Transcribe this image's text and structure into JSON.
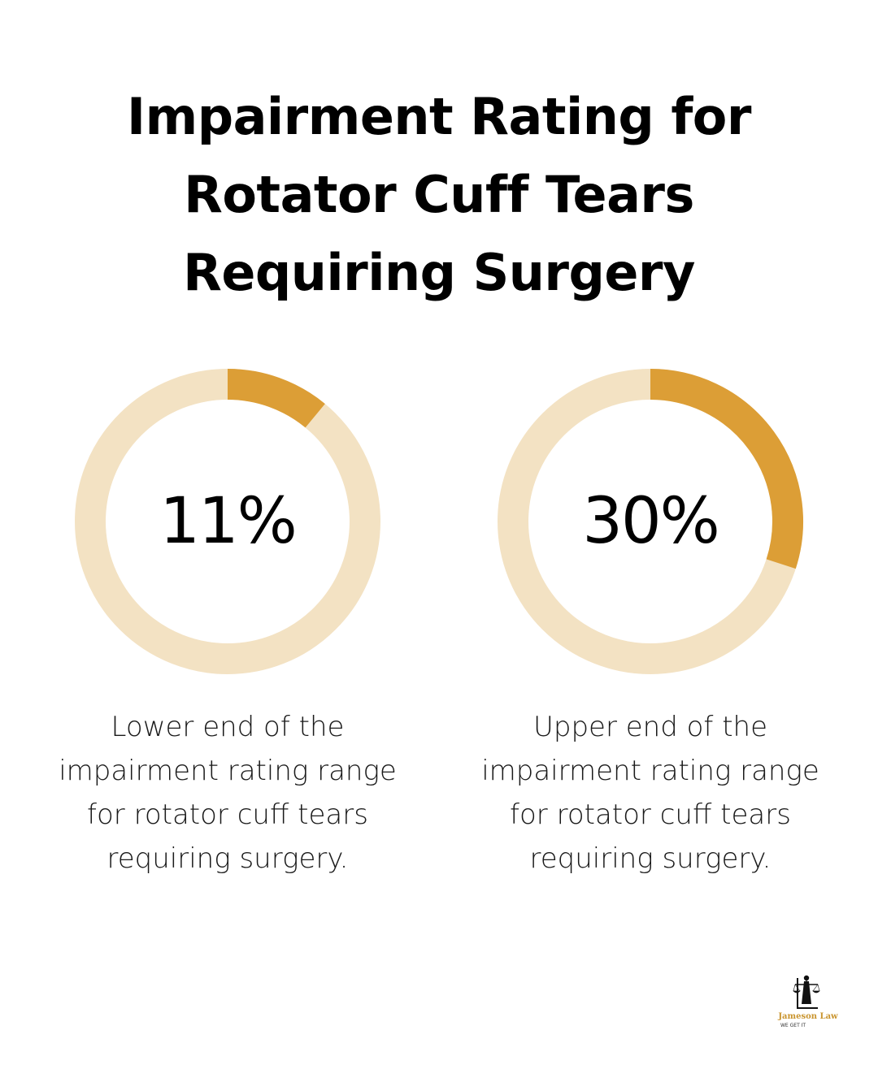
{
  "title": {
    "lines": [
      "Impairment Rating for",
      "Rotator Cuff Tears",
      "Requiring Surgery"
    ]
  },
  "chart_data": [
    {
      "type": "pie",
      "variant": "donut",
      "value": 11,
      "max": 100,
      "label": "11%",
      "caption_lines": [
        "Lower end of the",
        "impairment rating range",
        "for rotator cuff tears",
        "requiring surgery."
      ]
    },
    {
      "type": "pie",
      "variant": "donut",
      "value": 30,
      "max": 100,
      "label": "30%",
      "caption_lines": [
        "Upper end of the",
        "impairment rating range",
        "for rotator cuff tears",
        "requiring surgery."
      ]
    }
  ],
  "colors": {
    "filled": "#dc9e36",
    "track": "#f3e2c3",
    "text": "#000000"
  },
  "logo": {
    "name": "Jameson Law",
    "tagline": "WE GET IT",
    "icon": "lady-justice-icon"
  }
}
